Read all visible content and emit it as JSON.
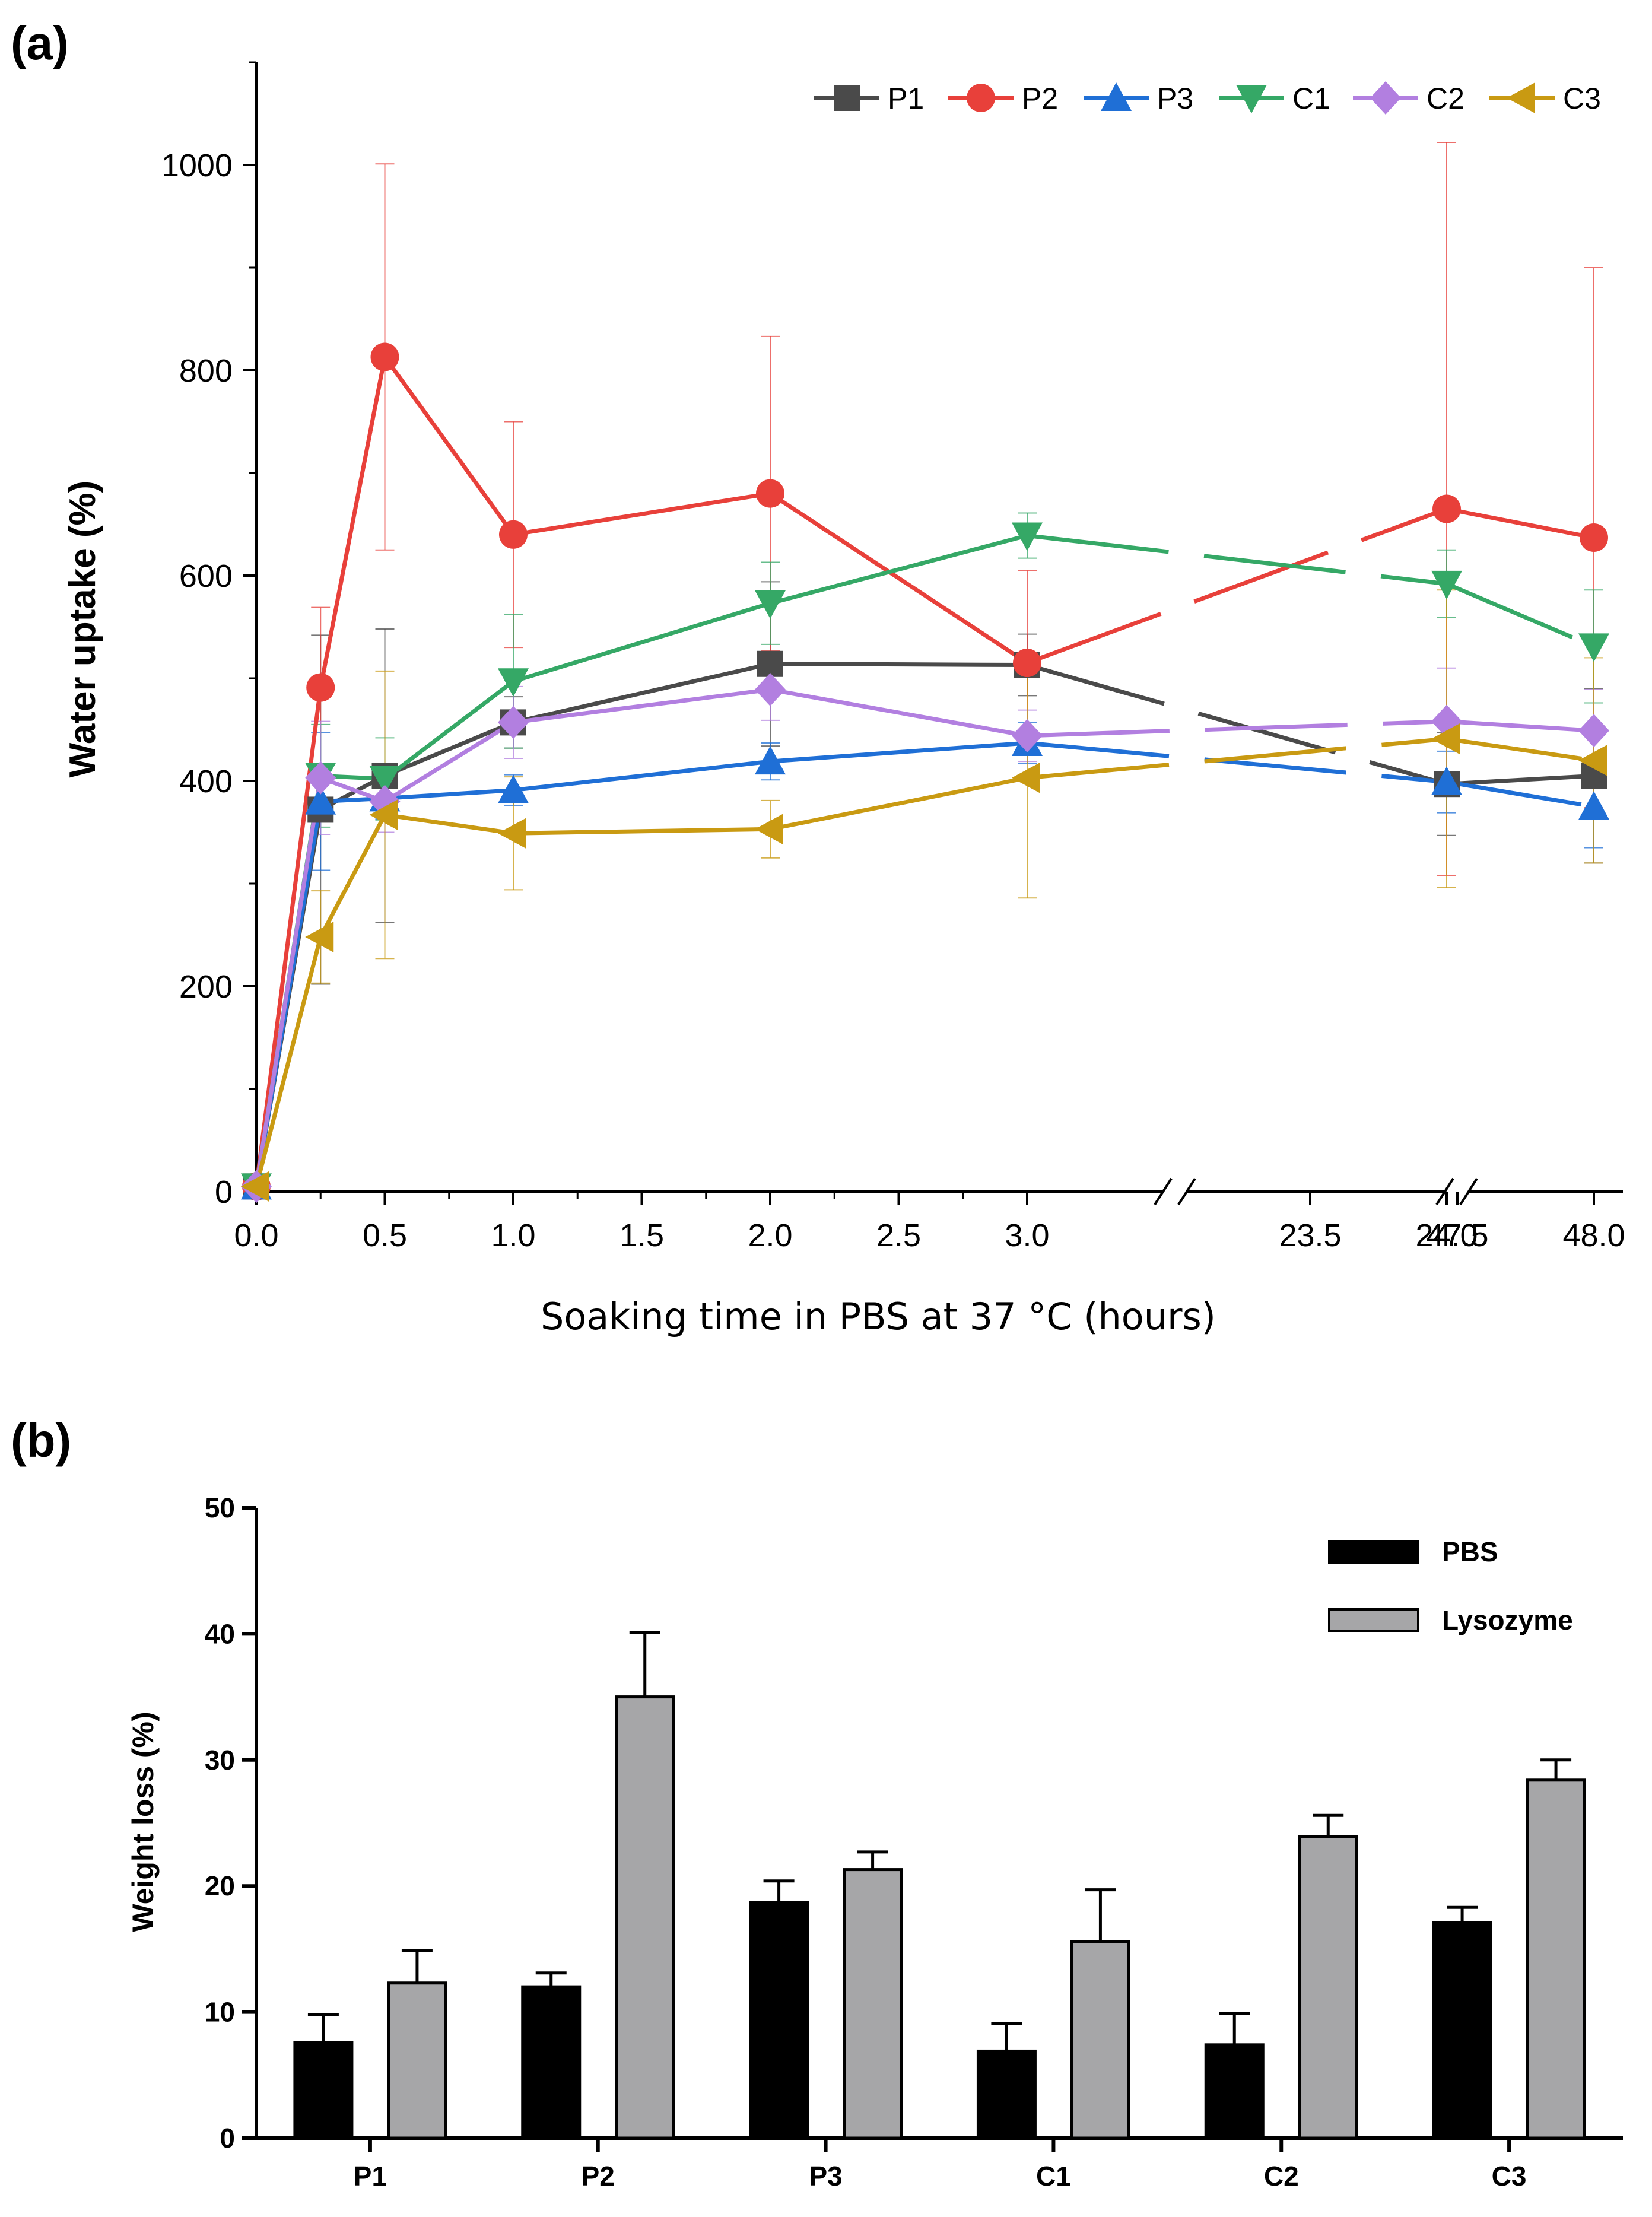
{
  "chart_data": [
    {
      "panel": "(a)",
      "type": "line",
      "xlabel": "Soaking time in PBS at 37 °C (hours)",
      "ylabel": "Water uptake (%)",
      "ylim": [
        0,
        1100
      ],
      "yticks": [
        0,
        200,
        400,
        600,
        800,
        1000
      ],
      "xtick_labels": [
        "0.0",
        "0.5",
        "1.0",
        "1.5",
        "2.0",
        "2.5",
        "3.0",
        "23.5",
        "24.0",
        "47.5",
        "48.0"
      ],
      "x_axis_breaks": [
        "3.0-23.5",
        "24.0-47.5"
      ],
      "x": [
        0,
        0.25,
        0.5,
        1.0,
        2.0,
        3.0,
        24.0,
        48.0
      ],
      "legend_position": "top-right",
      "series": [
        {
          "name": "P1",
          "color": "#4a4a4a",
          "marker": "square",
          "values": [
            5,
            372,
            405,
            457,
            514,
            513,
            397,
            405
          ],
          "errors": [
            0,
            170,
            143,
            25,
            80,
            30,
            50,
            85
          ]
        },
        {
          "name": "P2",
          "color": "#e8403a",
          "marker": "circle",
          "values": [
            5,
            491,
            813,
            640,
            680,
            515,
            665,
            637
          ],
          "errors": [
            0,
            78,
            188,
            110,
            153,
            90,
            357,
            263
          ]
        },
        {
          "name": "P3",
          "color": "#1f6fd6",
          "marker": "triangle-up",
          "values": [
            5,
            380,
            383,
            391,
            419,
            437,
            399,
            375
          ],
          "errors": [
            0,
            67,
            20,
            15,
            18,
            20,
            30,
            40
          ]
        },
        {
          "name": "C1",
          "color": "#35a866",
          "marker": "triangle-down",
          "values": [
            5,
            405,
            402,
            497,
            573,
            639,
            592,
            531
          ],
          "errors": [
            0,
            50,
            40,
            65,
            40,
            22,
            33,
            55
          ]
        },
        {
          "name": "C2",
          "color": "#b27fe0",
          "marker": "diamond",
          "values": [
            5,
            403,
            380,
            457,
            489,
            444,
            458,
            449
          ],
          "errors": [
            0,
            55,
            30,
            35,
            30,
            25,
            52,
            40
          ]
        },
        {
          "name": "C3",
          "color": "#c99a12",
          "marker": "triangle-left",
          "values": [
            5,
            248,
            367,
            349,
            353,
            403,
            441,
            420
          ],
          "errors": [
            0,
            45,
            140,
            55,
            28,
            117,
            145,
            100
          ]
        }
      ]
    },
    {
      "panel": "(b)",
      "type": "bar",
      "ylabel": "Weight loss (%)",
      "ylim": [
        0,
        50
      ],
      "yticks": [
        0,
        10,
        20,
        30,
        40,
        50
      ],
      "categories": [
        "P1",
        "P2",
        "P3",
        "C1",
        "C2",
        "C3"
      ],
      "legend_position": "top-right",
      "series": [
        {
          "name": "PBS",
          "color": "#000000",
          "values": [
            7.6,
            12.0,
            18.7,
            6.9,
            7.4,
            17.1
          ],
          "errors": [
            2.2,
            1.1,
            1.7,
            2.2,
            2.5,
            1.2
          ]
        },
        {
          "name": "Lysozyme",
          "color": "#a6a6a8",
          "values": [
            12.3,
            35.0,
            21.3,
            15.6,
            23.9,
            28.4
          ],
          "errors": [
            2.6,
            5.1,
            1.4,
            4.1,
            1.7,
            1.6
          ]
        }
      ]
    }
  ]
}
